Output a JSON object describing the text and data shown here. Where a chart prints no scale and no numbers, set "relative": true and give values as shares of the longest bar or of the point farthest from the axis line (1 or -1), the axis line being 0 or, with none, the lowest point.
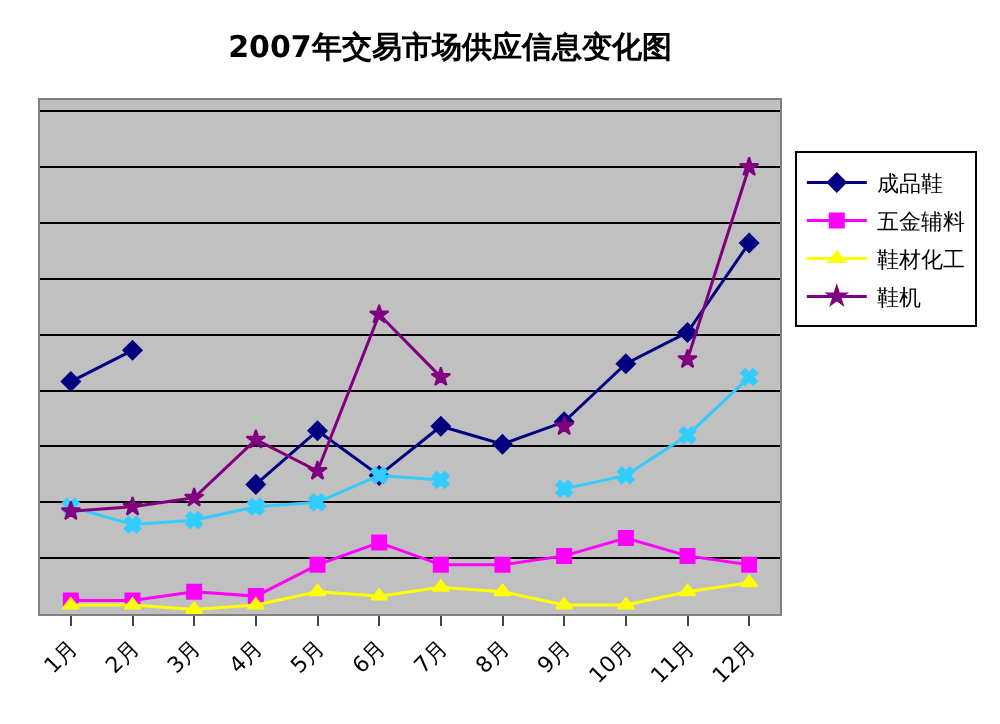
{
  "chart_data": {
    "type": "line",
    "title": "2007年交易市场供应信息变化图",
    "relative": true,
    "grid": true,
    "legend": "right",
    "categories": [
      "1月",
      "2月",
      "3月",
      "4月",
      "5月",
      "6月",
      "7月",
      "8月",
      "9月",
      "10月",
      "11月",
      "12月"
    ],
    "series": [
      {
        "name": "成品鞋",
        "color": "#000080",
        "marker": "diamond",
        "values": [
          0.52,
          0.59,
          null,
          0.29,
          0.41,
          0.31,
          0.42,
          0.38,
          0.43,
          0.56,
          0.63,
          0.83
        ]
      },
      {
        "name": "五金辅料",
        "color": "#ff00ff",
        "marker": "square",
        "values": [
          0.03,
          0.03,
          0.05,
          0.04,
          0.11,
          0.16,
          0.11,
          0.11,
          0.13,
          0.17,
          0.13,
          0.11
        ]
      },
      {
        "name": "鞋材化工",
        "color": "#ffff00",
        "marker": "triangle",
        "values": [
          0.02,
          0.02,
          0.01,
          0.02,
          0.05,
          0.04,
          0.06,
          0.05,
          0.02,
          0.02,
          0.05,
          0.07
        ]
      },
      {
        "color": "#33ccff",
        "marker": "cross",
        "values": [
          0.24,
          0.2,
          0.21,
          0.24,
          0.25,
          0.31,
          0.3,
          null,
          0.28,
          0.31,
          0.4,
          0.53
        ]
      },
      {
        "name": "鞋机",
        "color": "#800080",
        "marker": "star",
        "values": [
          0.23,
          0.24,
          0.26,
          0.39,
          0.32,
          0.67,
          0.53,
          null,
          0.42,
          null,
          0.57,
          1
        ]
      }
    ]
  }
}
